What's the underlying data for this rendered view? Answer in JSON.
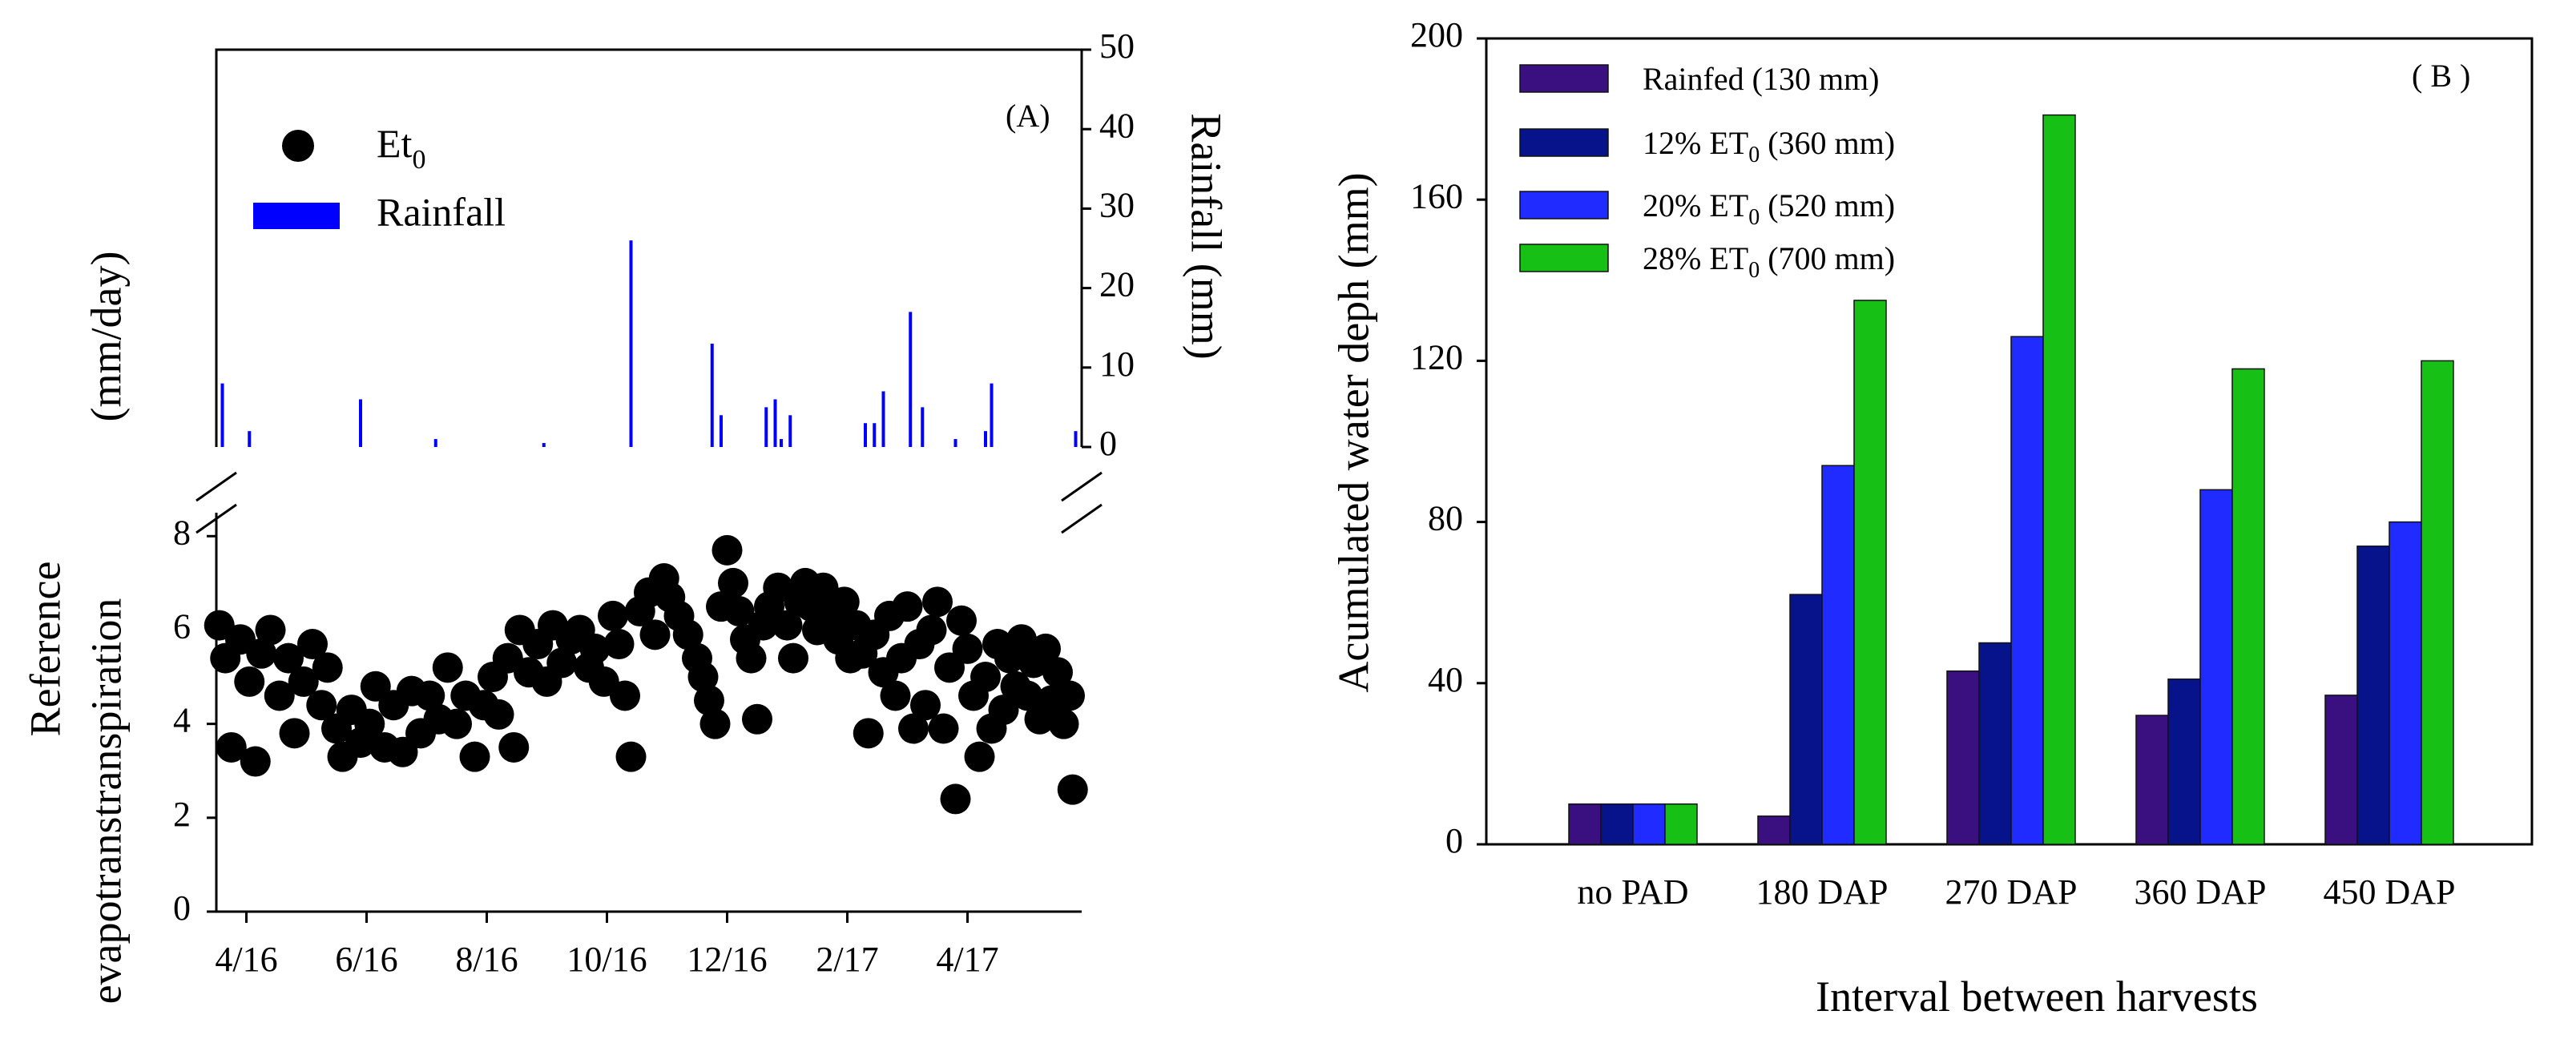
{
  "chart_data": [
    {
      "panel": "(A)",
      "type": "scatter+bar",
      "ylabel_line1": "Reference",
      "ylabel_line2": "evapotranstranspiration",
      "ylabel_units": "(mm/day)",
      "y2label": "Rainfall (mm)",
      "legend": {
        "et0_base": "Et",
        "et0_sub": "0",
        "rainfall": "Rainfall",
        "placement": "top-left"
      },
      "x_ticks": [
        "4/16",
        "6/16",
        "8/16",
        "10/16",
        "12/16",
        "2/17",
        "4/17"
      ],
      "x_tick_months": [
        3,
        5,
        7,
        9,
        11,
        13,
        15
      ],
      "x_range_months": [
        2.5,
        16.9
      ],
      "et0_ticks": [
        "0",
        "2",
        "4",
        "6",
        "8"
      ],
      "et0_ylim": [
        0,
        8.5
      ],
      "rain_ticks": [
        "0",
        "10",
        "20",
        "30",
        "40",
        "50"
      ],
      "rain_ylim": [
        0,
        50
      ],
      "rainfall_mm": [
        {
          "m": 2.6,
          "v": 8
        },
        {
          "m": 3.05,
          "v": 2
        },
        {
          "m": 4.9,
          "v": 6
        },
        {
          "m": 6.15,
          "v": 1
        },
        {
          "m": 7.95,
          "v": 0.5
        },
        {
          "m": 9.4,
          "v": 26
        },
        {
          "m": 10.75,
          "v": 13
        },
        {
          "m": 10.9,
          "v": 4
        },
        {
          "m": 11.65,
          "v": 5
        },
        {
          "m": 11.8,
          "v": 6
        },
        {
          "m": 11.9,
          "v": 1
        },
        {
          "m": 12.05,
          "v": 4
        },
        {
          "m": 13.3,
          "v": 3
        },
        {
          "m": 13.45,
          "v": 3
        },
        {
          "m": 13.6,
          "v": 7
        },
        {
          "m": 14.05,
          "v": 17
        },
        {
          "m": 14.25,
          "v": 5
        },
        {
          "m": 14.8,
          "v": 1
        },
        {
          "m": 15.3,
          "v": 2
        },
        {
          "m": 15.4,
          "v": 8
        },
        {
          "m": 16.8,
          "v": 2
        }
      ],
      "et0_mm_day": [
        {
          "m": 2.55,
          "v": 6.1
        },
        {
          "m": 2.65,
          "v": 5.4
        },
        {
          "m": 2.75,
          "v": 3.5
        },
        {
          "m": 2.9,
          "v": 5.8
        },
        {
          "m": 3.05,
          "v": 4.9
        },
        {
          "m": 3.15,
          "v": 3.2
        },
        {
          "m": 3.25,
          "v": 5.5
        },
        {
          "m": 3.4,
          "v": 6.0
        },
        {
          "m": 3.55,
          "v": 4.6
        },
        {
          "m": 3.7,
          "v": 5.4
        },
        {
          "m": 3.8,
          "v": 3.8
        },
        {
          "m": 3.95,
          "v": 4.9
        },
        {
          "m": 4.1,
          "v": 5.7
        },
        {
          "m": 4.25,
          "v": 4.4
        },
        {
          "m": 4.35,
          "v": 5.2
        },
        {
          "m": 4.5,
          "v": 3.9
        },
        {
          "m": 4.6,
          "v": 3.3
        },
        {
          "m": 4.75,
          "v": 4.3
        },
        {
          "m": 4.9,
          "v": 3.6
        },
        {
          "m": 5.05,
          "v": 4.0
        },
        {
          "m": 5.15,
          "v": 4.8
        },
        {
          "m": 5.3,
          "v": 3.5
        },
        {
          "m": 5.45,
          "v": 4.4
        },
        {
          "m": 5.6,
          "v": 3.4
        },
        {
          "m": 5.75,
          "v": 4.7
        },
        {
          "m": 5.9,
          "v": 3.8
        },
        {
          "m": 6.05,
          "v": 4.6
        },
        {
          "m": 6.2,
          "v": 4.1
        },
        {
          "m": 6.35,
          "v": 5.2
        },
        {
          "m": 6.5,
          "v": 4.0
        },
        {
          "m": 6.65,
          "v": 4.6
        },
        {
          "m": 6.8,
          "v": 3.3
        },
        {
          "m": 6.95,
          "v": 4.4
        },
        {
          "m": 7.1,
          "v": 5.0
        },
        {
          "m": 7.2,
          "v": 4.2
        },
        {
          "m": 7.35,
          "v": 5.4
        },
        {
          "m": 7.45,
          "v": 3.5
        },
        {
          "m": 7.55,
          "v": 6.0
        },
        {
          "m": 7.7,
          "v": 5.1
        },
        {
          "m": 7.85,
          "v": 5.7
        },
        {
          "m": 8.0,
          "v": 4.9
        },
        {
          "m": 8.1,
          "v": 6.1
        },
        {
          "m": 8.25,
          "v": 5.3
        },
        {
          "m": 8.4,
          "v": 5.8
        },
        {
          "m": 8.55,
          "v": 6.0
        },
        {
          "m": 8.7,
          "v": 5.2
        },
        {
          "m": 8.8,
          "v": 5.6
        },
        {
          "m": 8.95,
          "v": 4.9
        },
        {
          "m": 9.1,
          "v": 6.3
        },
        {
          "m": 9.2,
          "v": 5.7
        },
        {
          "m": 9.3,
          "v": 4.6
        },
        {
          "m": 9.4,
          "v": 3.3
        },
        {
          "m": 9.55,
          "v": 6.4
        },
        {
          "m": 9.7,
          "v": 6.8
        },
        {
          "m": 9.8,
          "v": 5.9
        },
        {
          "m": 9.95,
          "v": 7.1
        },
        {
          "m": 10.05,
          "v": 6.7
        },
        {
          "m": 10.2,
          "v": 6.3
        },
        {
          "m": 10.35,
          "v": 5.9
        },
        {
          "m": 10.5,
          "v": 5.4
        },
        {
          "m": 10.6,
          "v": 5.0
        },
        {
          "m": 10.7,
          "v": 4.5
        },
        {
          "m": 10.8,
          "v": 4.0
        },
        {
          "m": 10.9,
          "v": 6.5
        },
        {
          "m": 11.0,
          "v": 7.7
        },
        {
          "m": 11.1,
          "v": 7.0
        },
        {
          "m": 11.2,
          "v": 6.4
        },
        {
          "m": 11.3,
          "v": 5.8
        },
        {
          "m": 11.4,
          "v": 5.4
        },
        {
          "m": 11.5,
          "v": 4.1
        },
        {
          "m": 11.6,
          "v": 6.1
        },
        {
          "m": 11.7,
          "v": 6.5
        },
        {
          "m": 11.85,
          "v": 6.9
        },
        {
          "m": 12.0,
          "v": 6.1
        },
        {
          "m": 12.1,
          "v": 5.4
        },
        {
          "m": 12.2,
          "v": 6.6
        },
        {
          "m": 12.3,
          "v": 7.0
        },
        {
          "m": 12.4,
          "v": 6.5
        },
        {
          "m": 12.5,
          "v": 6.0
        },
        {
          "m": 12.6,
          "v": 6.9
        },
        {
          "m": 12.75,
          "v": 6.3
        },
        {
          "m": 12.85,
          "v": 5.8
        },
        {
          "m": 12.95,
          "v": 6.6
        },
        {
          "m": 13.05,
          "v": 5.4
        },
        {
          "m": 13.15,
          "v": 6.1
        },
        {
          "m": 13.25,
          "v": 5.5
        },
        {
          "m": 13.35,
          "v": 3.8
        },
        {
          "m": 13.45,
          "v": 5.9
        },
        {
          "m": 13.6,
          "v": 5.1
        },
        {
          "m": 13.7,
          "v": 6.3
        },
        {
          "m": 13.8,
          "v": 4.6
        },
        {
          "m": 13.9,
          "v": 5.4
        },
        {
          "m": 14.0,
          "v": 6.5
        },
        {
          "m": 14.1,
          "v": 3.9
        },
        {
          "m": 14.2,
          "v": 5.7
        },
        {
          "m": 14.3,
          "v": 4.4
        },
        {
          "m": 14.4,
          "v": 6.0
        },
        {
          "m": 14.5,
          "v": 6.6
        },
        {
          "m": 14.6,
          "v": 3.9
        },
        {
          "m": 14.7,
          "v": 5.2
        },
        {
          "m": 14.8,
          "v": 2.4
        },
        {
          "m": 14.9,
          "v": 6.2
        },
        {
          "m": 15.0,
          "v": 5.6
        },
        {
          "m": 15.1,
          "v": 4.6
        },
        {
          "m": 15.2,
          "v": 3.3
        },
        {
          "m": 15.3,
          "v": 5.0
        },
        {
          "m": 15.4,
          "v": 3.9
        },
        {
          "m": 15.5,
          "v": 5.7
        },
        {
          "m": 15.6,
          "v": 4.3
        },
        {
          "m": 15.7,
          "v": 5.4
        },
        {
          "m": 15.8,
          "v": 4.8
        },
        {
          "m": 15.9,
          "v": 5.8
        },
        {
          "m": 16.0,
          "v": 4.6
        },
        {
          "m": 16.1,
          "v": 5.3
        },
        {
          "m": 16.2,
          "v": 4.1
        },
        {
          "m": 16.3,
          "v": 5.6
        },
        {
          "m": 16.4,
          "v": 4.5
        },
        {
          "m": 16.5,
          "v": 5.1
        },
        {
          "m": 16.6,
          "v": 4.0
        },
        {
          "m": 16.7,
          "v": 4.6
        },
        {
          "m": 16.75,
          "v": 2.6
        }
      ],
      "colors": {
        "et0": "#000000",
        "rainfall": "#0000ff"
      }
    },
    {
      "panel": "( B )",
      "type": "bar",
      "xlabel": "Interval between harvests",
      "ylabel": "Acumulated water deph (mm)",
      "categories": [
        "no PAD",
        "180 DAP",
        "270 DAP",
        "360 DAP",
        "450 DAP"
      ],
      "ylim": [
        0,
        200
      ],
      "y_ticks": [
        "0",
        "40",
        "80",
        "120",
        "160",
        "200"
      ],
      "legend_placement": "top-left",
      "series": [
        {
          "name": "Rainfed (130 mm)",
          "legend_pre": "Rainfed (130 mm)",
          "legend_sub": "",
          "legend_post": "",
          "color": "#3a0f80",
          "values": [
            10,
            7,
            43,
            32,
            37
          ]
        },
        {
          "name": "12% ET0 (360 mm)",
          "legend_pre": "12% ET",
          "legend_sub": "0",
          "legend_post": " (360 mm)",
          "color": "#07138a",
          "values": [
            10,
            62,
            50,
            41,
            74
          ]
        },
        {
          "name": "20% ET0 (520 mm)",
          "legend_pre": "20% ET",
          "legend_sub": "0",
          "legend_post": " (520 mm)",
          "color": "#1f2bff",
          "values": [
            10,
            94,
            126,
            88,
            80
          ]
        },
        {
          "name": "28% ET0 (700 mm)",
          "legend_pre": "28% ET",
          "legend_sub": "0",
          "legend_post": " (700 mm)",
          "color": "#16c014",
          "values": [
            10,
            135,
            181,
            118,
            120
          ]
        }
      ]
    }
  ]
}
